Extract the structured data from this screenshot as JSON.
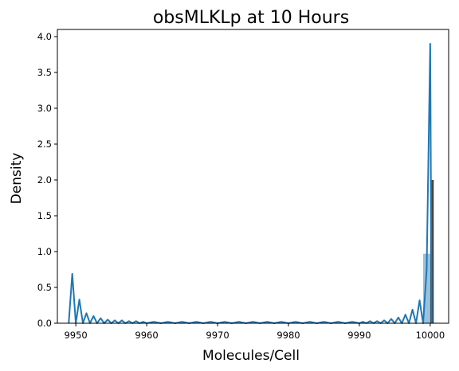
{
  "chart_data": {
    "type": "line",
    "title": "obsMLKLp at 10 Hours",
    "xlabel": "Molecules/Cell",
    "ylabel": "Density",
    "xlim": [
      9947.4,
      10002.6
    ],
    "ylim": [
      0,
      4.1
    ],
    "xticks": [
      9950,
      9960,
      9970,
      9980,
      9990,
      10000
    ],
    "yticks": [
      0.0,
      0.5,
      1.0,
      1.5,
      2.0,
      2.5,
      3.0,
      3.5,
      4.0
    ],
    "grid": false,
    "legend": "none",
    "series": [
      {
        "kind": "kde-line",
        "color": "#1f77b4",
        "x": [
          9949.0,
          9949.5,
          9950.0,
          9950.5,
          9951.0,
          9951.5,
          9952.0,
          9952.5,
          9953.0,
          9953.5,
          9954.0,
          9954.5,
          9955.0,
          9955.5,
          9956.0,
          9956.5,
          9957.0,
          9957.5,
          9958.0,
          9958.5,
          9959.0,
          9959.5,
          9960.0,
          9961.0,
          9962.0,
          9963.0,
          9964.0,
          9965.0,
          9966.0,
          9967.0,
          9968.0,
          9969.0,
          9970.0,
          9971.0,
          9972.0,
          9973.0,
          9974.0,
          9975.0,
          9976.0,
          9977.0,
          9978.0,
          9979.0,
          9980.0,
          9981.0,
          9982.0,
          9983.0,
          9984.0,
          9985.0,
          9986.0,
          9987.0,
          9988.0,
          9989.0,
          9990.0,
          9990.5,
          9991.0,
          9991.5,
          9992.0,
          9992.5,
          9993.0,
          9993.5,
          9994.0,
          9994.5,
          9995.0,
          9995.5,
          9996.0,
          9996.5,
          9997.0,
          9997.5,
          9998.0,
          9998.5,
          9999.0,
          9999.5,
          10000.0,
          10000.2
        ],
        "y": [
          0.0,
          0.69,
          0.0,
          0.33,
          0.0,
          0.14,
          0.0,
          0.1,
          0.0,
          0.07,
          0.0,
          0.05,
          0.0,
          0.04,
          0.0,
          0.04,
          0.0,
          0.03,
          0.0,
          0.03,
          0.0,
          0.02,
          0.0,
          0.02,
          0.0,
          0.02,
          0.0,
          0.02,
          0.0,
          0.02,
          0.0,
          0.02,
          0.0,
          0.02,
          0.0,
          0.02,
          0.0,
          0.02,
          0.0,
          0.02,
          0.0,
          0.02,
          0.0,
          0.02,
          0.0,
          0.02,
          0.0,
          0.02,
          0.0,
          0.02,
          0.0,
          0.02,
          0.0,
          0.02,
          0.0,
          0.03,
          0.0,
          0.03,
          0.0,
          0.04,
          0.0,
          0.06,
          0.0,
          0.08,
          0.0,
          0.12,
          0.0,
          0.19,
          0.0,
          0.32,
          0.0,
          0.75,
          3.9,
          0.0
        ]
      },
      {
        "kind": "histogram",
        "color": "#1f77b4",
        "bins": [
          {
            "x0": 9999.0,
            "x1": 9999.5,
            "density": 0.97
          },
          {
            "x0": 9999.5,
            "x1": 10000.0,
            "density": 0.97
          }
        ]
      },
      {
        "kind": "histogram",
        "color": "#3b3b3b",
        "bins": [
          {
            "x0": 10000.0,
            "x1": 10000.5,
            "density": 2.0
          }
        ]
      }
    ]
  }
}
